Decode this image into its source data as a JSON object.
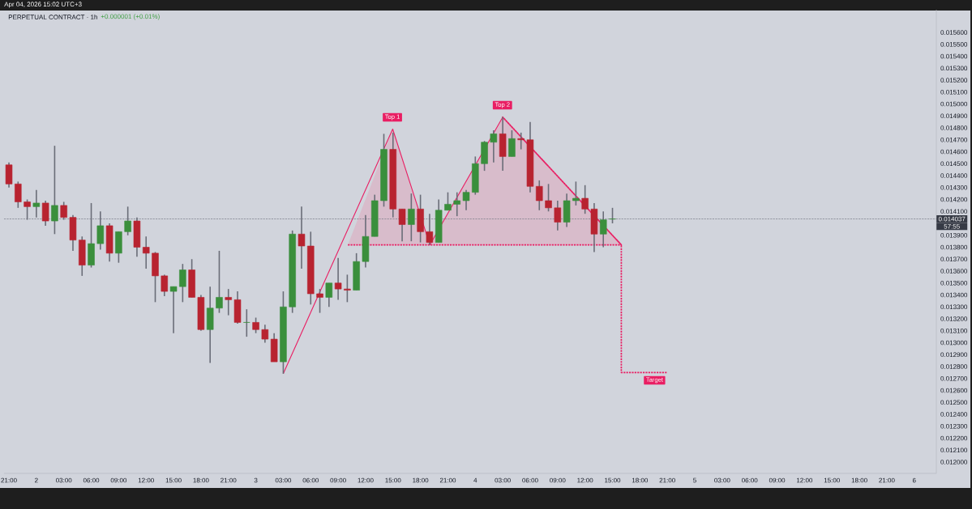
{
  "chart_data": {
    "type": "candlestick",
    "title": "PERPETUAL CONTRACT · 1h",
    "subtitle": "+0.000001 (+0.01%)",
    "x": [
      "2026-04-01T21:00",
      "2026-04-01T22:00",
      "2026-04-01T23:00",
      "2026-04-02T00:00",
      "2026-04-02T01:00",
      "2026-04-02T02:00",
      "2026-04-02T03:00",
      "2026-04-02T04:00",
      "2026-04-02T05:00",
      "2026-04-02T06:00",
      "2026-04-02T07:00",
      "2026-04-02T08:00",
      "2026-04-02T09:00",
      "2026-04-02T10:00",
      "2026-04-02T11:00",
      "2026-04-02T12:00",
      "2026-04-02T13:00",
      "2026-04-02T14:00",
      "2026-04-02T15:00",
      "2026-04-02T16:00",
      "2026-04-02T17:00",
      "2026-04-02T18:00",
      "2026-04-02T19:00",
      "2026-04-02T20:00",
      "2026-04-02T21:00",
      "2026-04-02T22:00",
      "2026-04-02T23:00",
      "2026-04-03T00:00",
      "2026-04-03T01:00",
      "2026-04-03T02:00",
      "2026-04-03T03:00",
      "2026-04-03T04:00",
      "2026-04-03T05:00",
      "2026-04-03T06:00",
      "2026-04-03T07:00",
      "2026-04-03T08:00",
      "2026-04-03T09:00",
      "2026-04-03T10:00",
      "2026-04-03T11:00",
      "2026-04-03T12:00",
      "2026-04-03T13:00",
      "2026-04-03T14:00",
      "2026-04-03T15:00",
      "2026-04-03T16:00",
      "2026-04-03T17:00",
      "2026-04-03T18:00",
      "2026-04-03T19:00",
      "2026-04-03T20:00",
      "2026-04-03T21:00",
      "2026-04-03T22:00",
      "2026-04-03T23:00",
      "2026-04-04T00:00",
      "2026-04-04T01:00",
      "2026-04-04T02:00",
      "2026-04-04T03:00",
      "2026-04-04T04:00",
      "2026-04-04T05:00",
      "2026-04-04T06:00",
      "2026-04-04T07:00",
      "2026-04-04T08:00",
      "2026-04-04T09:00",
      "2026-04-04T10:00",
      "2026-04-04T11:00",
      "2026-04-04T12:00",
      "2026-04-04T13:00",
      "2026-04-04T14:00",
      "2026-04-04T15:00"
    ],
    "ohlc": [
      [
        0.01449,
        0.01451,
        0.0143,
        0.01433
      ],
      [
        0.01433,
        0.01435,
        0.01413,
        0.01418
      ],
      [
        0.01418,
        0.0142,
        0.01403,
        0.01414
      ],
      [
        0.01414,
        0.01428,
        0.01405,
        0.01417
      ],
      [
        0.01417,
        0.01419,
        0.01398,
        0.01402
      ],
      [
        0.01402,
        0.01465,
        0.01391,
        0.01415
      ],
      [
        0.01415,
        0.01418,
        0.01403,
        0.01405
      ],
      [
        0.01405,
        0.01407,
        0.01377,
        0.01386
      ],
      [
        0.01386,
        0.01389,
        0.01356,
        0.01365
      ],
      [
        0.01365,
        0.01417,
        0.01363,
        0.01383
      ],
      [
        0.01383,
        0.0141,
        0.01378,
        0.01398
      ],
      [
        0.01398,
        0.014,
        0.01368,
        0.01375
      ],
      [
        0.01375,
        0.01393,
        0.01367,
        0.01393
      ],
      [
        0.01393,
        0.01414,
        0.0139,
        0.01402
      ],
      [
        0.01402,
        0.01405,
        0.01372,
        0.0138
      ],
      [
        0.0138,
        0.01389,
        0.01362,
        0.01375
      ],
      [
        0.01375,
        0.01376,
        0.01334,
        0.01356
      ],
      [
        0.01356,
        0.01357,
        0.01339,
        0.01343
      ],
      [
        0.01343,
        0.01347,
        0.01308,
        0.01347
      ],
      [
        0.01347,
        0.01366,
        0.01334,
        0.01361
      ],
      [
        0.01361,
        0.0137,
        0.01338,
        0.01338
      ],
      [
        0.01338,
        0.0134,
        0.0131,
        0.01311
      ],
      [
        0.01311,
        0.01347,
        0.01283,
        0.01329
      ],
      [
        0.01329,
        0.01377,
        0.01325,
        0.01338
      ],
      [
        0.01338,
        0.01345,
        0.01323,
        0.01336
      ],
      [
        0.01336,
        0.01343,
        0.01316,
        0.01317
      ],
      [
        0.01317,
        0.01328,
        0.01305,
        0.01317
      ],
      [
        0.01317,
        0.01321,
        0.01308,
        0.01311
      ],
      [
        0.01311,
        0.01315,
        0.013,
        0.01303
      ],
      [
        0.01303,
        0.01308,
        0.01284,
        0.01284
      ],
      [
        0.01284,
        0.01343,
        0.01274,
        0.0133
      ],
      [
        0.0133,
        0.01394,
        0.01325,
        0.01391
      ],
      [
        0.01391,
        0.01414,
        0.01362,
        0.01381
      ],
      [
        0.01381,
        0.01393,
        0.01332,
        0.01341
      ],
      [
        0.01341,
        0.01345,
        0.01325,
        0.01338
      ],
      [
        0.01338,
        0.0135,
        0.0133,
        0.0135
      ],
      [
        0.0135,
        0.01371,
        0.01336,
        0.01345
      ],
      [
        0.01345,
        0.01357,
        0.01334,
        0.01344
      ],
      [
        0.01344,
        0.01375,
        0.01344,
        0.01368
      ],
      [
        0.01368,
        0.01407,
        0.01363,
        0.01389
      ],
      [
        0.01389,
        0.01424,
        0.01389,
        0.01419
      ],
      [
        0.01419,
        0.01475,
        0.01414,
        0.01462
      ],
      [
        0.01462,
        0.01476,
        0.01405,
        0.01412
      ],
      [
        0.01412,
        0.01412,
        0.01385,
        0.01399
      ],
      [
        0.01399,
        0.01425,
        0.01385,
        0.01412
      ],
      [
        0.01412,
        0.01424,
        0.01384,
        0.01393
      ],
      [
        0.01393,
        0.01408,
        0.01382,
        0.01384
      ],
      [
        0.01384,
        0.0142,
        0.01384,
        0.01411
      ],
      [
        0.01411,
        0.01426,
        0.01411,
        0.01416
      ],
      [
        0.01416,
        0.01426,
        0.01406,
        0.01419
      ],
      [
        0.01419,
        0.01428,
        0.01411,
        0.01426
      ],
      [
        0.01426,
        0.01456,
        0.01424,
        0.0145
      ],
      [
        0.0145,
        0.01469,
        0.01444,
        0.01468
      ],
      [
        0.01468,
        0.01478,
        0.01451,
        0.01475
      ],
      [
        0.01475,
        0.01489,
        0.01444,
        0.01456
      ],
      [
        0.01456,
        0.01478,
        0.01456,
        0.01471
      ],
      [
        0.01471,
        0.01476,
        0.01462,
        0.0147
      ],
      [
        0.0147,
        0.01485,
        0.01426,
        0.01431
      ],
      [
        0.01431,
        0.01436,
        0.01411,
        0.01419
      ],
      [
        0.01419,
        0.01433,
        0.0141,
        0.01413
      ],
      [
        0.01413,
        0.01419,
        0.01394,
        0.01401
      ],
      [
        0.01401,
        0.01425,
        0.01397,
        0.01419
      ],
      [
        0.01419,
        0.01435,
        0.01415,
        0.01421
      ],
      [
        0.01421,
        0.01432,
        0.01408,
        0.01412
      ],
      [
        0.01412,
        0.01417,
        0.01376,
        0.01391
      ],
      [
        0.01391,
        0.0141,
        0.0138,
        0.01403
      ],
      [
        0.014036,
        0.01413,
        0.014,
        0.014037
      ]
    ],
    "colors": [
      "#b82330",
      "#b82330",
      "#b82330",
      "#3a8f3c",
      "#b82330",
      "#3a8f3c",
      "#b82330",
      "#b82330",
      "#b82330",
      "#3a8f3c",
      "#3a8f3c",
      "#b82330",
      "#3a8f3c",
      "#3a8f3c",
      "#b82330",
      "#b82330",
      "#b82330",
      "#b82330",
      "#3a8f3c",
      "#3a8f3c",
      "#b82330",
      "#b82330",
      "#3a8f3c",
      "#3a8f3c",
      "#b82330",
      "#b82330",
      "#3a8f3c",
      "#b82330",
      "#b82330",
      "#b82330",
      "#3a8f3c",
      "#3a8f3c",
      "#b82330",
      "#b82330",
      "#b82330",
      "#3a8f3c",
      "#b82330",
      "#b82330",
      "#3a8f3c",
      "#3a8f3c",
      "#3a8f3c",
      "#3a8f3c",
      "#b82330",
      "#b82330",
      "#3a8f3c",
      "#b82330",
      "#b82330",
      "#3a8f3c",
      "#3a8f3c",
      "#3a8f3c",
      "#3a8f3c",
      "#3a8f3c",
      "#3a8f3c",
      "#3a8f3c",
      "#b82330",
      "#3a8f3c",
      "#b82330",
      "#b82330",
      "#b82330",
      "#b82330",
      "#b82330",
      "#3a8f3c",
      "#3a8f3c",
      "#b82330",
      "#b82330",
      "#3a8f3c",
      "#3a8f3c"
    ],
    "series": [
      {
        "type": "area",
        "color": "#d8bccb",
        "x": [
          "2026-04-03T10:04",
          "2026-04-03T14:58",
          "2026-04-03T19:02",
          "2026-04-04T03:00",
          "2026-04-04T15:58"
        ],
        "values": [
          0.01382,
          0.01479,
          0.01382,
          0.01489,
          0.01382
        ]
      },
      {
        "type": "line",
        "color": "#e91e63",
        "line_style": "solid",
        "x": [
          "2026-04-03T03:00",
          "2026-04-03T14:58",
          "2026-04-03T19:02",
          "2026-04-04T03:00"
        ],
        "values": [
          0.01274,
          0.01479,
          0.01382,
          0.01489
        ]
      },
      {
        "type": "line",
        "color": "#e91e63",
        "line_style": "dotted",
        "x": [
          "2026-04-03T10:04",
          "2026-04-04T15:58",
          "2026-04-04T03:00",
          "2026-04-04T15:58",
          "2026-04-04T15:58",
          "2026-04-04T20:56"
        ],
        "values": [
          0.01382,
          0.01382,
          0.01489,
          0.01382,
          0.01275,
          0.01275
        ]
      }
    ],
    "xlim": [
      "2026-04-01T20:28",
      "2026-04-06T02:25"
    ],
    "ylim": [
      0.011905,
      0.01579
    ],
    "xticks": [
      {
        "value": "2026-04-01T21:00",
        "label": "21:00"
      },
      {
        "value": "2026-04-02T00:00",
        "label": "2"
      },
      {
        "value": "2026-04-02T03:00",
        "label": "03:00"
      },
      {
        "value": "2026-04-02T06:00",
        "label": "06:00"
      },
      {
        "value": "2026-04-02T09:00",
        "label": "09:00"
      },
      {
        "value": "2026-04-02T12:00",
        "label": "12:00"
      },
      {
        "value": "2026-04-02T15:00",
        "label": "15:00"
      },
      {
        "value": "2026-04-02T18:00",
        "label": "18:00"
      },
      {
        "value": "2026-04-02T21:00",
        "label": "21:00"
      },
      {
        "value": "2026-04-03T00:00",
        "label": "3"
      },
      {
        "value": "2026-04-03T03:00",
        "label": "03:00"
      },
      {
        "value": "2026-04-03T06:00",
        "label": "06:00"
      },
      {
        "value": "2026-04-03T09:00",
        "label": "09:00"
      },
      {
        "value": "2026-04-03T12:00",
        "label": "12:00"
      },
      {
        "value": "2026-04-03T15:00",
        "label": "15:00"
      },
      {
        "value": "2026-04-03T18:00",
        "label": "18:00"
      },
      {
        "value": "2026-04-03T21:00",
        "label": "21:00"
      },
      {
        "value": "2026-04-04T00:00",
        "label": "4"
      },
      {
        "value": "2026-04-04T03:00",
        "label": "03:00"
      },
      {
        "value": "2026-04-04T06:00",
        "label": "06:00"
      },
      {
        "value": "2026-04-04T09:00",
        "label": "09:00"
      },
      {
        "value": "2026-04-04T12:00",
        "label": "12:00"
      },
      {
        "value": "2026-04-04T15:00",
        "label": "15:00"
      },
      {
        "value": "2026-04-04T18:00",
        "label": "18:00"
      },
      {
        "value": "2026-04-04T21:00",
        "label": "21:00"
      },
      {
        "value": "2026-04-05T00:00",
        "label": "5"
      },
      {
        "value": "2026-04-05T03:00",
        "label": "03:00"
      },
      {
        "value": "2026-04-05T06:00",
        "label": "06:00"
      },
      {
        "value": "2026-04-05T09:00",
        "label": "09:00"
      },
      {
        "value": "2026-04-05T12:00",
        "label": "12:00"
      },
      {
        "value": "2026-04-05T15:00",
        "label": "15:00"
      },
      {
        "value": "2026-04-05T18:00",
        "label": "18:00"
      },
      {
        "value": "2026-04-05T21:00",
        "label": "21:00"
      },
      {
        "value": "2026-04-06T00:00",
        "label": "6"
      }
    ],
    "yticks": [
      {
        "value": 0.012,
        "label": "0.012000"
      },
      {
        "value": 0.0121,
        "label": "0.012100"
      },
      {
        "value": 0.0122,
        "label": "0.012200"
      },
      {
        "value": 0.0123,
        "label": "0.012300"
      },
      {
        "value": 0.0124,
        "label": "0.012400"
      },
      {
        "value": 0.0125,
        "label": "0.012500"
      },
      {
        "value": 0.0126,
        "label": "0.012600"
      },
      {
        "value": 0.0127,
        "label": "0.012700"
      },
      {
        "value": 0.0128,
        "label": "0.012800"
      },
      {
        "value": 0.0129,
        "label": "0.012900"
      },
      {
        "value": 0.013,
        "label": "0.013000"
      },
      {
        "value": 0.0131,
        "label": "0.013100"
      },
      {
        "value": 0.0132,
        "label": "0.013200"
      },
      {
        "value": 0.0133,
        "label": "0.013300"
      },
      {
        "value": 0.0134,
        "label": "0.013400"
      },
      {
        "value": 0.0135,
        "label": "0.013500"
      },
      {
        "value": 0.0136,
        "label": "0.013600"
      },
      {
        "value": 0.0137,
        "label": "0.013700"
      },
      {
        "value": 0.0138,
        "label": "0.013800"
      },
      {
        "value": 0.0139,
        "label": "0.013900"
      },
      {
        "value": 0.0141,
        "label": "0.014100"
      },
      {
        "value": 0.0142,
        "label": "0.014200"
      },
      {
        "value": 0.0143,
        "label": "0.014300"
      },
      {
        "value": 0.0144,
        "label": "0.014400"
      },
      {
        "value": 0.0145,
        "label": "0.014500"
      },
      {
        "value": 0.0146,
        "label": "0.014600"
      },
      {
        "value": 0.0147,
        "label": "0.014700"
      },
      {
        "value": 0.0148,
        "label": "0.014800"
      },
      {
        "value": 0.0149,
        "label": "0.014900"
      },
      {
        "value": 0.015,
        "label": "0.015000"
      },
      {
        "value": 0.0151,
        "label": "0.015100"
      },
      {
        "value": 0.0152,
        "label": "0.015200"
      },
      {
        "value": 0.0153,
        "label": "0.015300"
      },
      {
        "value": 0.0154,
        "label": "0.015400"
      },
      {
        "value": 0.0155,
        "label": "0.015500"
      },
      {
        "value": 0.0156,
        "label": "0.015600"
      }
    ],
    "ref_lines": [
      {
        "axis": "y",
        "value": 0.014037,
        "label": "0.014037",
        "color": "#787b86",
        "line_style": "dotted"
      }
    ],
    "annotations": [
      "Apr 04, 2026 15:02 UTC+3",
      "57:55",
      {
        "text": "Top 1",
        "x": "2026-04-03T14:56",
        "y": 0.014888
      },
      {
        "text": "Top 2",
        "x": "2026-04-04T02:58",
        "y": 0.01499
      },
      {
        "text": "Target",
        "x": "2026-04-04T19:36",
        "y": 0.012685
      }
    ]
  }
}
